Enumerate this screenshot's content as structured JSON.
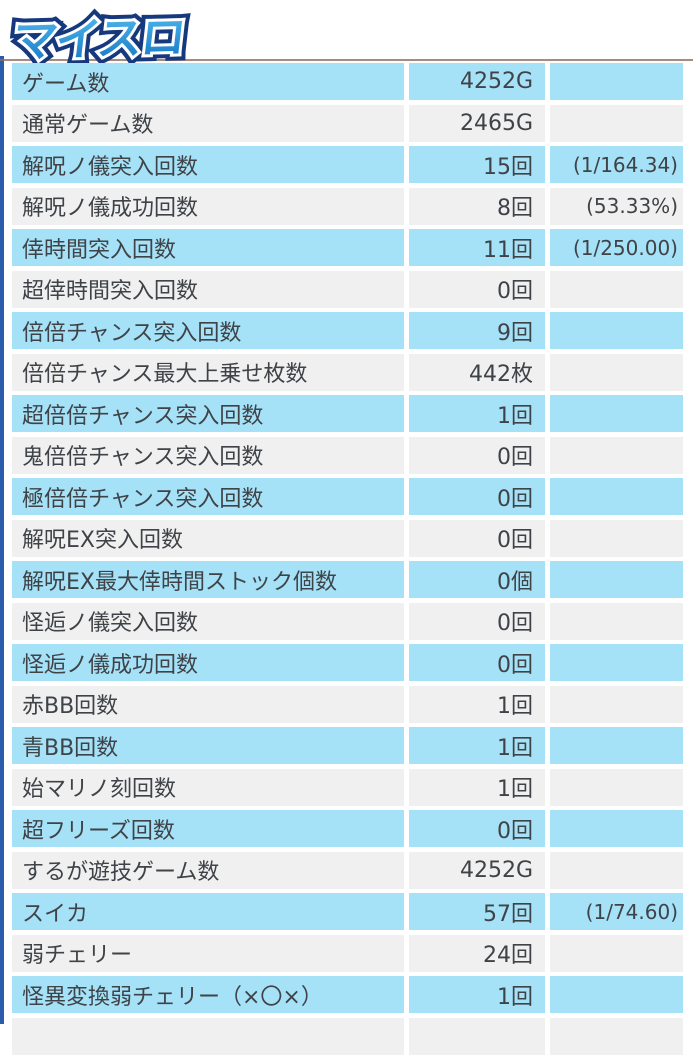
{
  "page": {
    "logo_text": "マイスロ",
    "colors": {
      "row_blue": "#a5e1f7",
      "row_gray": "#f0f0f0",
      "left_bar": "#2b5cab",
      "top_rule": "#8d6f64",
      "logo_blue": "#1e9ade",
      "logo_navy": "#16397e",
      "text": "#3f4347"
    }
  },
  "table": {
    "rows": [
      {
        "label": "ゲーム数",
        "value": "4252G",
        "ratio": ""
      },
      {
        "label": "通常ゲーム数",
        "value": "2465G",
        "ratio": ""
      },
      {
        "label": "解呪ノ儀突入回数",
        "value": "15回",
        "ratio": "(1/164.34)"
      },
      {
        "label": "解呪ノ儀成功回数",
        "value": "8回",
        "ratio": "(53.33%)"
      },
      {
        "label": "倖時間突入回数",
        "value": "11回",
        "ratio": "(1/250.00)"
      },
      {
        "label": "超倖時間突入回数",
        "value": "0回",
        "ratio": ""
      },
      {
        "label": "倍倍チャンス突入回数",
        "value": "9回",
        "ratio": ""
      },
      {
        "label": "倍倍チャンス最大上乗せ枚数",
        "value": "442枚",
        "ratio": ""
      },
      {
        "label": "超倍倍チャンス突入回数",
        "value": "1回",
        "ratio": ""
      },
      {
        "label": "鬼倍倍チャンス突入回数",
        "value": "0回",
        "ratio": ""
      },
      {
        "label": "極倍倍チャンス突入回数",
        "value": "0回",
        "ratio": ""
      },
      {
        "label": "解呪EX突入回数",
        "value": "0回",
        "ratio": ""
      },
      {
        "label": "解呪EX最大倖時間ストック個数",
        "value": "0個",
        "ratio": ""
      },
      {
        "label": "怪逅ノ儀突入回数",
        "value": "0回",
        "ratio": ""
      },
      {
        "label": "怪逅ノ儀成功回数",
        "value": "0回",
        "ratio": ""
      },
      {
        "label": "赤BB回数",
        "value": "1回",
        "ratio": ""
      },
      {
        "label": "青BB回数",
        "value": "1回",
        "ratio": ""
      },
      {
        "label": "始マリノ刻回数",
        "value": "1回",
        "ratio": ""
      },
      {
        "label": "超フリーズ回数",
        "value": "0回",
        "ratio": ""
      },
      {
        "label": "するが遊技ゲーム数",
        "value": "4252G",
        "ratio": ""
      },
      {
        "label": "スイカ",
        "value": "57回",
        "ratio": "(1/74.60)"
      },
      {
        "label": "弱チェリー",
        "value": "24回",
        "ratio": ""
      },
      {
        "label": "怪異変換弱チェリー（×〇×）",
        "value": "1回",
        "ratio": ""
      }
    ]
  }
}
